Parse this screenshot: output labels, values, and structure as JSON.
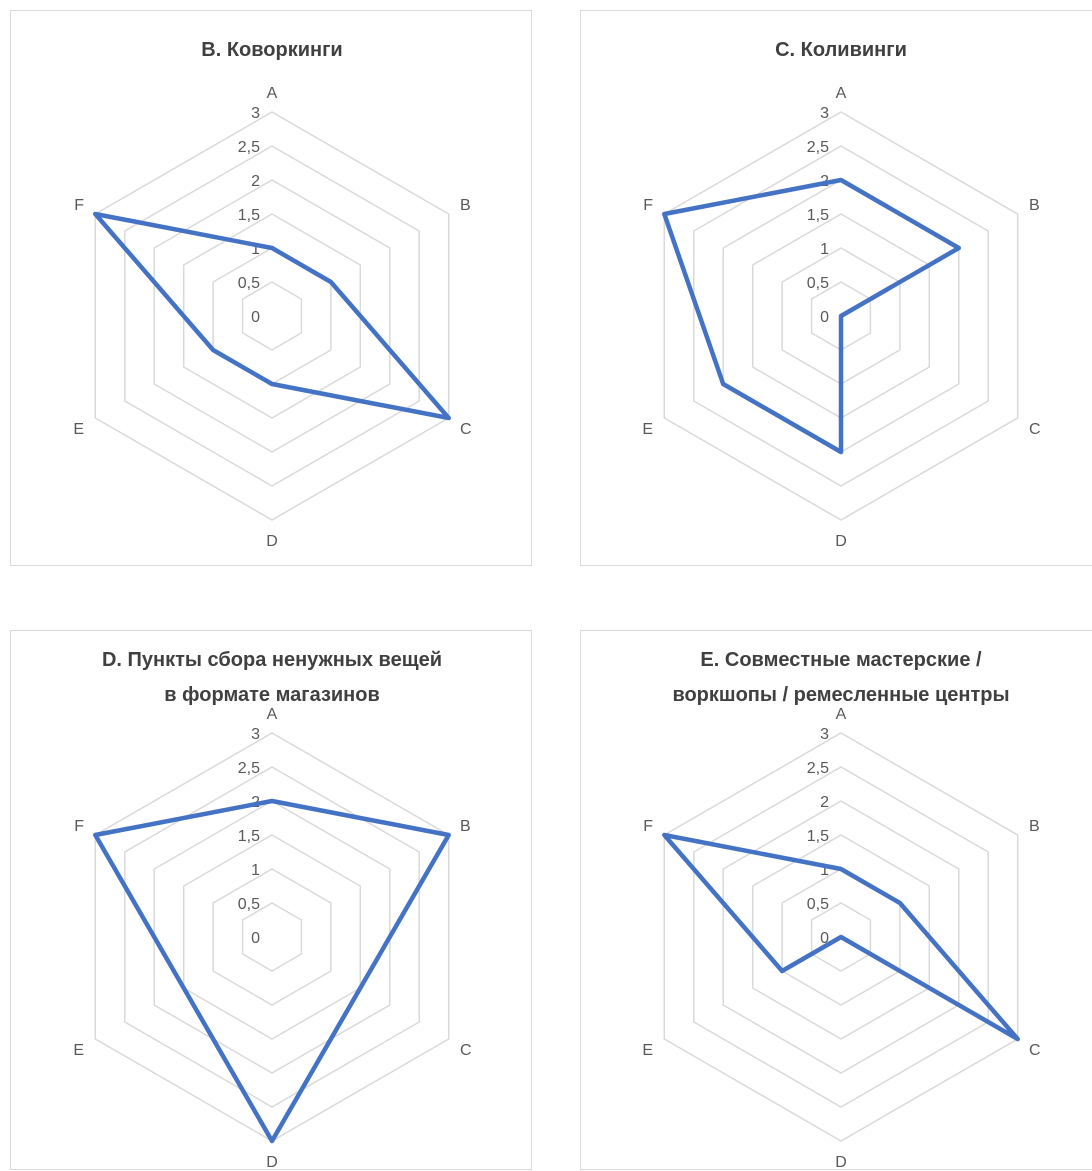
{
  "chart_data": [
    {
      "type": "radar",
      "title": [
        "B. Коворкинги"
      ],
      "categories": [
        "A",
        "B",
        "C",
        "D",
        "E",
        "F"
      ],
      "ticks": [
        "0",
        "0,5",
        "1",
        "1,5",
        "2",
        "2,5",
        "3"
      ],
      "rlim": [
        0,
        3
      ],
      "series": [
        {
          "values": [
            1,
            1,
            3,
            1,
            1,
            3
          ],
          "color": "#4472c4"
        }
      ]
    },
    {
      "type": "radar",
      "title": [
        "C. Коливинги"
      ],
      "categories": [
        "A",
        "B",
        "C",
        "D",
        "E",
        "F"
      ],
      "ticks": [
        "0",
        "0,5",
        "1",
        "1,5",
        "2",
        "2,5",
        "3"
      ],
      "rlim": [
        0,
        3
      ],
      "series": [
        {
          "values": [
            2,
            2,
            0,
            2,
            2,
            3
          ],
          "color": "#4472c4"
        }
      ]
    },
    {
      "type": "radar",
      "title": [
        "D. Пункты сбора ненужных вещей",
        "в формате магазинов"
      ],
      "categories": [
        "A",
        "B",
        "C",
        "D",
        "E",
        "F"
      ],
      "ticks": [
        "0",
        "0,5",
        "1",
        "1,5",
        "2",
        "2,5",
        "3"
      ],
      "rlim": [
        0,
        3
      ],
      "series": [
        {
          "values": [
            2,
            3,
            1.5,
            3,
            1.5,
            3
          ],
          "color": "#4472c4"
        }
      ]
    },
    {
      "type": "radar",
      "title": [
        "E. Совместные мастерские /",
        "воркшопы / ремесленные центры"
      ],
      "categories": [
        "A",
        "B",
        "C",
        "D",
        "E",
        "F"
      ],
      "ticks": [
        "0",
        "0,5",
        "1",
        "1,5",
        "2",
        "2,5",
        "3"
      ],
      "rlim": [
        0,
        3
      ],
      "series": [
        {
          "values": [
            1,
            1,
            3,
            0,
            1,
            3
          ],
          "color": "#4472c4"
        }
      ]
    }
  ]
}
